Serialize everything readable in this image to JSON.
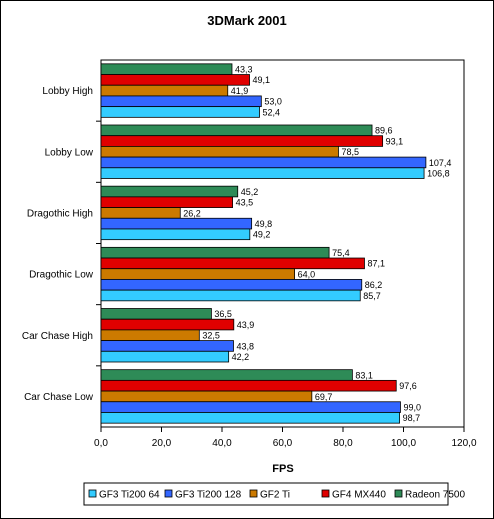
{
  "chart_data": {
    "type": "bar",
    "orientation": "horizontal",
    "title": "3DMark 2001",
    "xlabel": "FPS",
    "ylabel": "",
    "xlim": [
      0,
      120
    ],
    "x_ticks": [
      "0,0",
      "20,0",
      "40,0",
      "60,0",
      "80,0",
      "100,0",
      "120,0"
    ],
    "grid": false,
    "legend_position": "bottom",
    "categories": [
      "Lobby High",
      "Lobby Low",
      "Dragothic High",
      "Dragothic Low",
      "Car Chase High",
      "Car Chase Low"
    ],
    "series": [
      {
        "name": "GF3 Ti200 64",
        "color": "#33ccff",
        "values": [
          52.4,
          106.8,
          49.2,
          85.7,
          42.2,
          98.7
        ],
        "labels": [
          "52,4",
          "106,8",
          "49,2",
          "85,7",
          "42,2",
          "98,7"
        ]
      },
      {
        "name": "GF3 Ti200 128",
        "color": "#3366ff",
        "values": [
          53.0,
          107.4,
          49.8,
          86.2,
          43.8,
          99.0
        ],
        "labels": [
          "53,0",
          "107,4",
          "49,8",
          "86,2",
          "43,8",
          "99,0"
        ]
      },
      {
        "name": "GF2 Ti",
        "color": "#cc7a00",
        "values": [
          41.9,
          78.5,
          26.2,
          64.0,
          32.5,
          69.7
        ],
        "labels": [
          "41,9",
          "78,5",
          "26,2",
          "64,0",
          "32,5",
          "69,7"
        ]
      },
      {
        "name": "GF4 MX440",
        "color": "#e00000",
        "values": [
          49.1,
          93.1,
          43.5,
          87.1,
          43.9,
          97.6
        ],
        "labels": [
          "49,1",
          "93,1",
          "43,5",
          "87,1",
          "43,9",
          "97,6"
        ]
      },
      {
        "name": "Radeon 7500",
        "color": "#2e8b57",
        "values": [
          43.3,
          89.6,
          45.2,
          75.4,
          36.5,
          83.1
        ],
        "labels": [
          "43,3",
          "89,6",
          "45,2",
          "75,4",
          "36,5",
          "83,1"
        ]
      }
    ]
  }
}
